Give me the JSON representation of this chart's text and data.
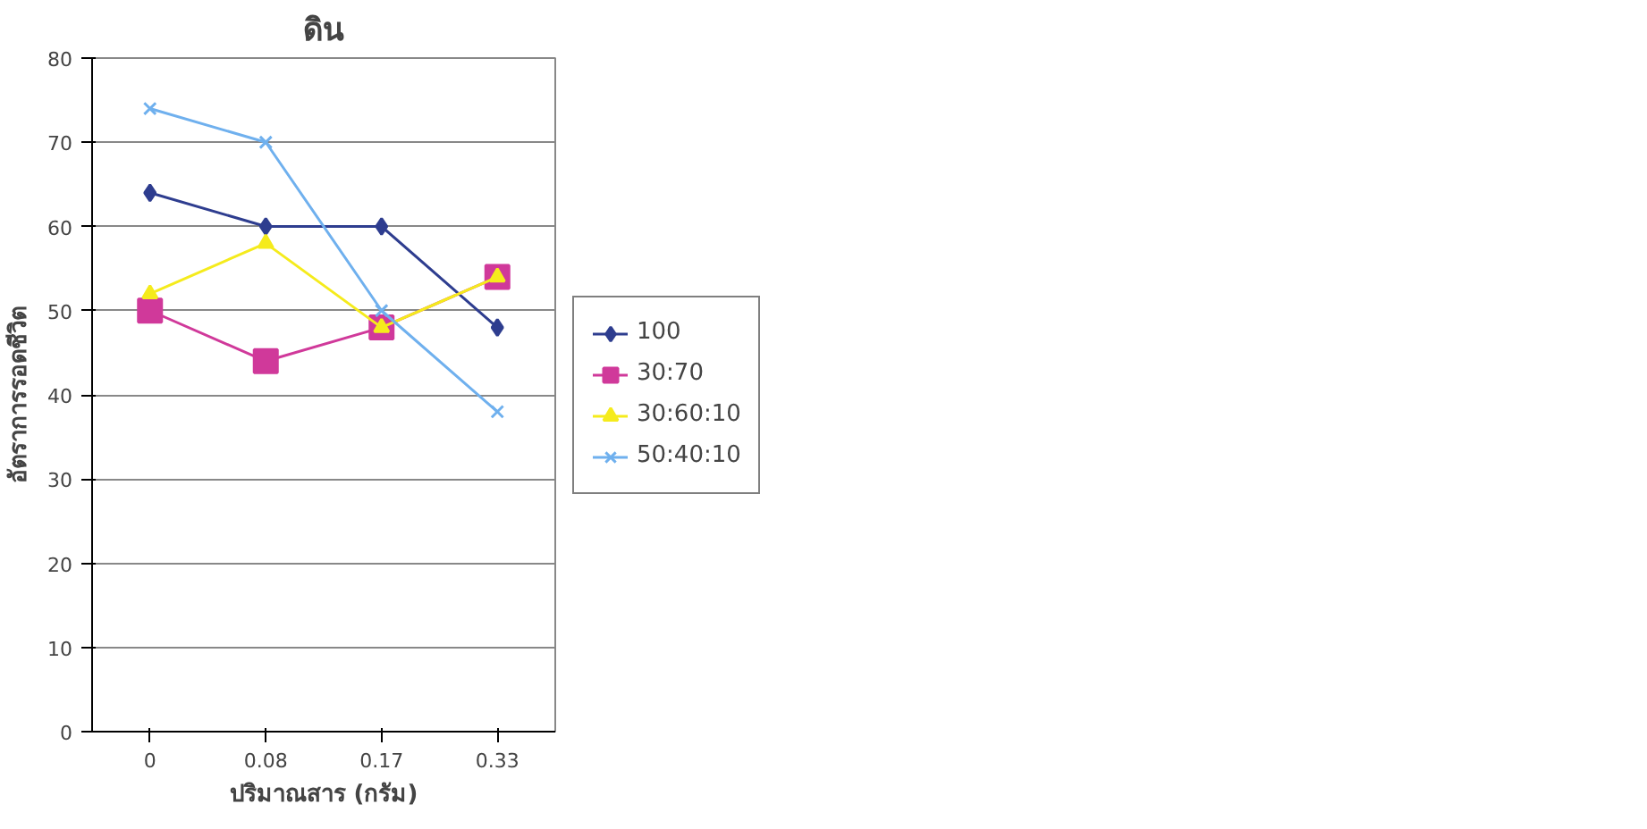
{
  "chart_data": {
    "type": "line",
    "title": "ดิน",
    "xlabel": "ปริมาณสาร (กรัม)",
    "ylabel": "อัตราการรอดชีวิต",
    "categories": [
      "0",
      "0.08",
      "0.17",
      "0.33"
    ],
    "series": [
      {
        "name": "100",
        "color": "#2e3d8f",
        "values": [
          64,
          60,
          60,
          48
        ],
        "marker": "diamond"
      },
      {
        "name": "30:70",
        "color": "#d0399a",
        "values": [
          50,
          44,
          48,
          54
        ],
        "marker": "square"
      },
      {
        "name": "30:60:10",
        "color": "#f5eb1c",
        "values": [
          52,
          58,
          48,
          54
        ],
        "marker": "triangle"
      },
      {
        "name": "50:40:10",
        "color": "#6fb0ee",
        "values": [
          74,
          70,
          50,
          38
        ],
        "marker": "cross"
      }
    ],
    "ylim": [
      0,
      80
    ],
    "yticks": [
      0,
      10,
      20,
      30,
      40,
      50,
      60,
      70,
      80
    ],
    "grid": "y",
    "legend": "right",
    "line_style": "solid"
  }
}
